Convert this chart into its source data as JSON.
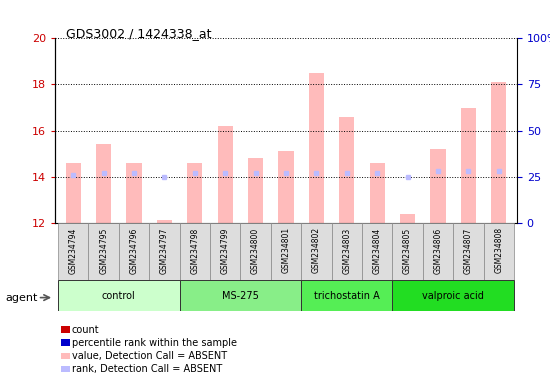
{
  "title": "GDS3002 / 1424338_at",
  "samples": [
    "GSM234794",
    "GSM234795",
    "GSM234796",
    "GSM234797",
    "GSM234798",
    "GSM234799",
    "GSM234800",
    "GSM234801",
    "GSM234802",
    "GSM234803",
    "GSM234804",
    "GSM234805",
    "GSM234806",
    "GSM234807",
    "GSM234808"
  ],
  "groups": [
    {
      "name": "control",
      "color": "#ccffcc",
      "indices": [
        0,
        1,
        2,
        3
      ]
    },
    {
      "name": "MS-275",
      "color": "#88ee88",
      "indices": [
        4,
        5,
        6,
        7
      ]
    },
    {
      "name": "trichostatin A",
      "color": "#55ee55",
      "indices": [
        8,
        9,
        10
      ]
    },
    {
      "name": "valproic acid",
      "color": "#22dd22",
      "indices": [
        11,
        12,
        13,
        14
      ]
    }
  ],
  "bar_values": [
    14.6,
    15.4,
    14.6,
    12.1,
    14.6,
    16.2,
    14.8,
    15.1,
    18.5,
    16.6,
    14.6,
    12.4,
    15.2,
    17.0,
    18.1
  ],
  "rank_values": [
    26,
    27,
    27,
    25,
    27,
    27,
    27,
    27,
    27,
    27,
    27,
    25,
    28,
    28,
    28
  ],
  "ylim_left": [
    12,
    20
  ],
  "ylim_right": [
    0,
    100
  ],
  "yticks_left": [
    12,
    14,
    16,
    18,
    20
  ],
  "yticks_right": [
    0,
    25,
    50,
    75,
    100
  ],
  "bar_color": "#ffbbbb",
  "rank_color": "#bbbbff",
  "left_axis_color": "#cc0000",
  "right_axis_color": "#0000cc",
  "legend_items": [
    {
      "color": "#cc0000",
      "label": "count"
    },
    {
      "color": "#0000cc",
      "label": "percentile rank within the sample"
    },
    {
      "color": "#ffbbbb",
      "label": "value, Detection Call = ABSENT"
    },
    {
      "color": "#bbbbff",
      "label": "rank, Detection Call = ABSENT"
    }
  ]
}
